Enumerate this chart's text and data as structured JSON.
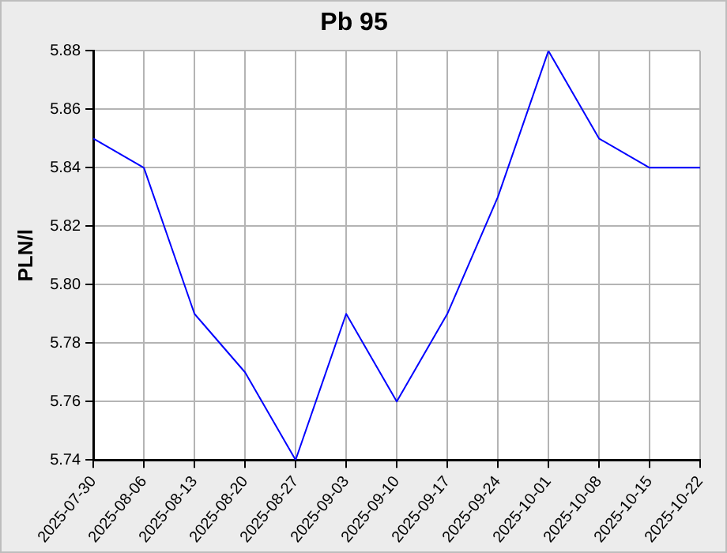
{
  "chart_data": {
    "type": "line",
    "title": "Pb 95",
    "ylabel": "PLN/l",
    "categories": [
      "2025-07-30",
      "2025-08-06",
      "2025-08-13",
      "2025-08-20",
      "2025-08-27",
      "2025-09-03",
      "2025-09-10",
      "2025-09-17",
      "2025-09-24",
      "2025-10-01",
      "2025-10-08",
      "2025-10-15",
      "2025-10-22"
    ],
    "series": [
      {
        "color": "#0000ff",
        "values": [
          5.85,
          5.84,
          5.79,
          5.77,
          5.74,
          5.79,
          5.76,
          5.79,
          5.83,
          5.88,
          5.85,
          5.84,
          5.84
        ]
      }
    ],
    "ylim": [
      5.74,
      5.88
    ],
    "yticks": [
      5.74,
      5.76,
      5.78,
      {
        "value": 5.8,
        "label": "5.80"
      },
      5.82,
      5.84,
      5.86,
      5.88
    ],
    "grid": true,
    "legend": false,
    "marker": "none",
    "line_style": "solid"
  }
}
